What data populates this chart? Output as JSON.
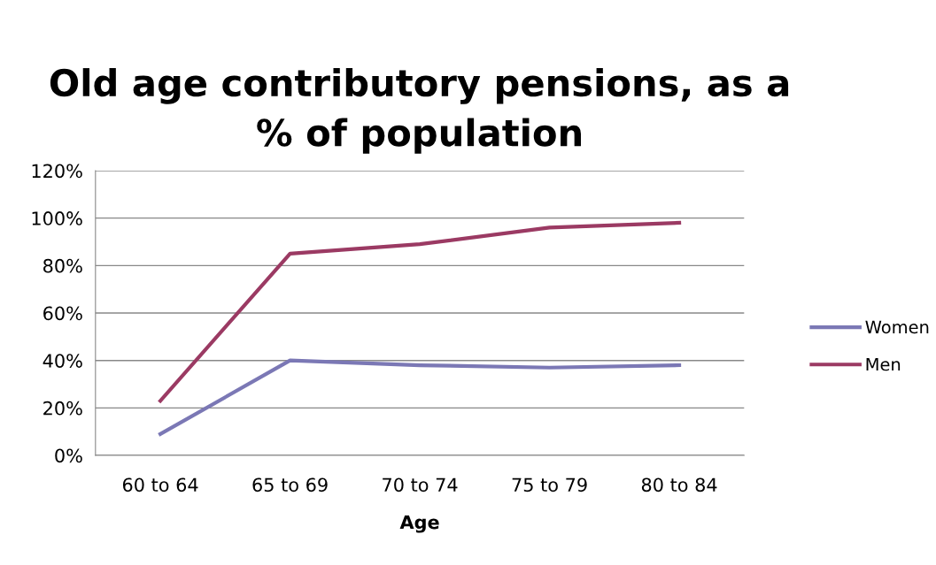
{
  "chart_data": {
    "type": "line",
    "title": "Old age contributory pensions, as a\n% of population",
    "xlabel": "Age",
    "categories": [
      "60 to 64",
      "65 to 69",
      "70 to 74",
      "75 to 79",
      "80 to 84"
    ],
    "series": [
      {
        "name": "Women",
        "color": "#7b78b5",
        "values": [
          9,
          40,
          38,
          37,
          38
        ]
      },
      {
        "name": "Men",
        "color": "#9b3a63",
        "values": [
          23,
          85,
          89,
          96,
          98
        ]
      }
    ],
    "ylim": [
      0,
      120
    ],
    "yticks": [
      {
        "value": 0,
        "label": "0%"
      },
      {
        "value": 20,
        "label": "20%"
      },
      {
        "value": 40,
        "label": "40%"
      },
      {
        "value": 60,
        "label": "60%"
      },
      {
        "value": 80,
        "label": "80%"
      },
      {
        "value": 100,
        "label": "100%"
      },
      {
        "value": 120,
        "label": "120%"
      }
    ],
    "grid": "y",
    "legend": "right",
    "marker": "none",
    "line_style": "solid"
  }
}
